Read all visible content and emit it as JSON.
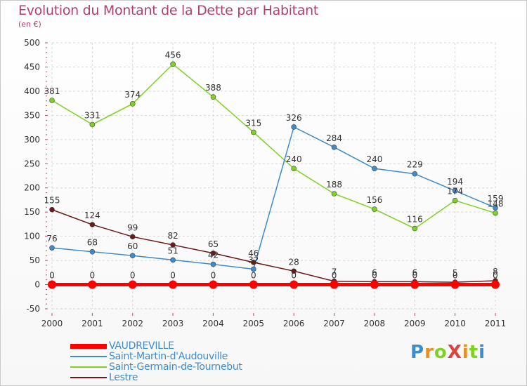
{
  "chart_data": {
    "type": "line",
    "title": "Evolution du Montant de la Dette par Habitant",
    "unit_label": "(en €)",
    "x": [
      "2000",
      "2001",
      "2002",
      "2003",
      "2004",
      "2005",
      "2006",
      "2007",
      "2008",
      "2009",
      "2010",
      "2011"
    ],
    "ylim": [
      -50,
      500
    ],
    "yticks": [
      "-50",
      "0",
      "50",
      "100",
      "150",
      "200",
      "250",
      "300",
      "350",
      "400",
      "450",
      "500"
    ],
    "grid": true,
    "legend_position": "bottom-left",
    "series": [
      {
        "name": "VAUDREVILLE",
        "color": "#ff0000",
        "values": [
          0,
          0,
          0,
          0,
          0,
          0,
          0,
          0,
          0,
          0,
          0,
          0
        ],
        "labels": [
          "0",
          "0",
          "0",
          "0",
          "0",
          "0",
          "0",
          "0",
          "0",
          "0",
          "0",
          "0"
        ]
      },
      {
        "name": "Saint-Martin-d'Audouville",
        "color": "#3d8ccc",
        "values": [
          76,
          68,
          60,
          51,
          42,
          32,
          326,
          284,
          240,
          229,
          194,
          159
        ],
        "labels": [
          "76",
          "68",
          "60",
          "51",
          "42",
          "32",
          "326",
          "284",
          "240",
          "229",
          "194",
          "159"
        ]
      },
      {
        "name": "Saint-Germain-de-Tournebut",
        "color": "#7ed321",
        "values": [
          381,
          331,
          374,
          456,
          388,
          315,
          240,
          188,
          156,
          116,
          174,
          148
        ],
        "labels": [
          "381",
          "331",
          "374",
          "456",
          "388",
          "315",
          "240",
          "188",
          "156",
          "116",
          "174",
          "148"
        ]
      },
      {
        "name": "Lestre",
        "color": "#6b1a1a",
        "values": [
          155,
          124,
          99,
          82,
          65,
          46,
          28,
          7,
          6,
          6,
          5,
          8
        ],
        "labels": [
          "155",
          "124",
          "99",
          "82",
          "65",
          "46",
          "28",
          "7",
          "6",
          "6",
          "5",
          "8"
        ]
      }
    ]
  },
  "logo_text": "ProXiti"
}
